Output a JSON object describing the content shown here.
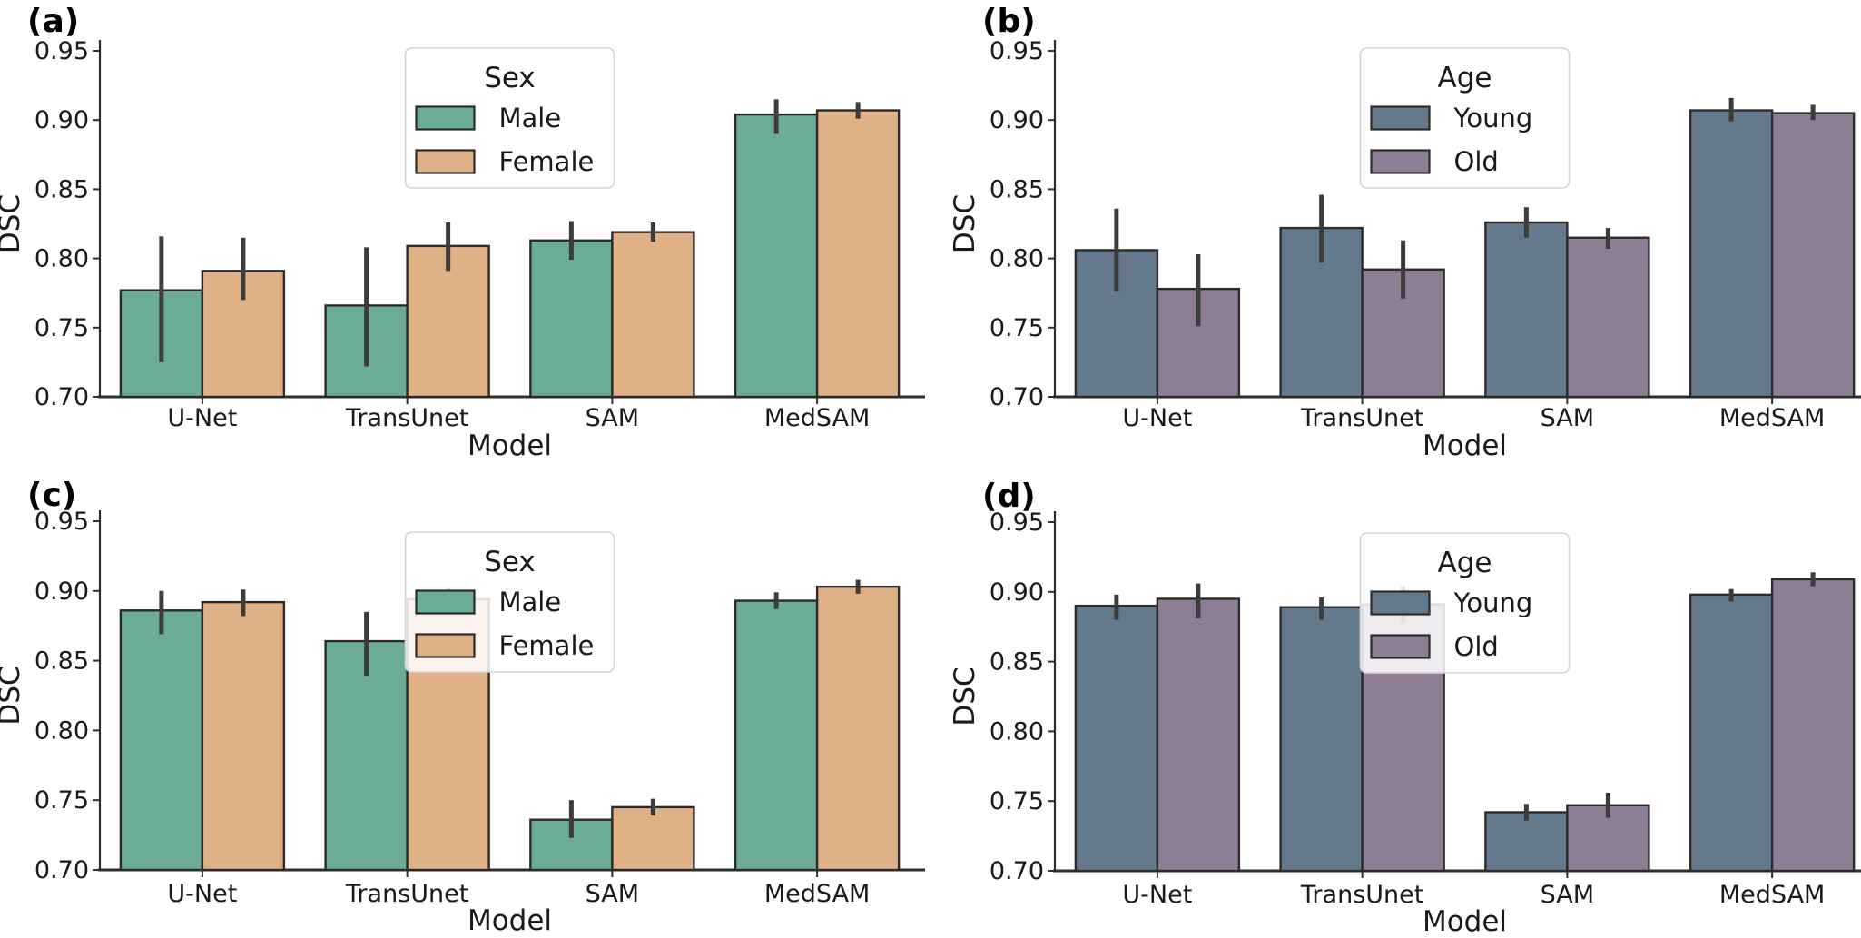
{
  "figure": {
    "background": "#FFFFFF",
    "xlabel": "Model",
    "ylabel": "DSC",
    "categories": [
      "U-Net",
      "TransUnet",
      "SAM",
      "MedSAM"
    ],
    "ytick_labels": [
      "0.70",
      "0.75",
      "0.80",
      "0.85",
      "0.90",
      "0.95"
    ],
    "ylim": [
      0.7,
      0.95
    ]
  },
  "colors": {
    "male": "#6BAC98",
    "female": "#E0B087",
    "young": "#64798C",
    "old": "#8D7E96",
    "bar_edge": "#2B2B2B",
    "error_bar": "#3C3C3C",
    "axis": "#2E2E2E",
    "text": "#1A1A1A",
    "legend_border": "#D4D4D4",
    "legend_bg": "rgba(255,255,255,0.85)"
  },
  "chart_data": [
    {
      "type": "bar",
      "panel_label": "(a)",
      "legend_title": "Sex",
      "legend_position": "upper center",
      "xlabel": "Model",
      "ylabel": "DSC",
      "ylim": [
        0.7,
        0.95
      ],
      "yticks": [
        0.7,
        0.75,
        0.8,
        0.85,
        0.9,
        0.95
      ],
      "grid": false,
      "categories": [
        "U-Net",
        "TransUnet",
        "SAM",
        "MedSAM"
      ],
      "series": [
        {
          "name": "Male",
          "color_key": "male",
          "values": [
            0.777,
            0.766,
            0.813,
            0.904
          ],
          "err_lo": [
            0.725,
            0.722,
            0.799,
            0.89
          ],
          "err_hi": [
            0.816,
            0.808,
            0.827,
            0.915
          ]
        },
        {
          "name": "Female",
          "color_key": "female",
          "values": [
            0.791,
            0.809,
            0.819,
            0.907
          ],
          "err_lo": [
            0.77,
            0.791,
            0.812,
            0.901
          ],
          "err_hi": [
            0.815,
            0.826,
            0.826,
            0.913
          ]
        }
      ]
    },
    {
      "type": "bar",
      "panel_label": "(b)",
      "legend_title": "Age",
      "legend_position": "upper center",
      "xlabel": "Model",
      "ylabel": "DSC",
      "ylim": [
        0.7,
        0.95
      ],
      "yticks": [
        0.7,
        0.75,
        0.8,
        0.85,
        0.9,
        0.95
      ],
      "grid": false,
      "categories": [
        "U-Net",
        "TransUnet",
        "SAM",
        "MedSAM"
      ],
      "series": [
        {
          "name": "Young",
          "color_key": "young",
          "values": [
            0.806,
            0.822,
            0.826,
            0.907
          ],
          "err_lo": [
            0.776,
            0.797,
            0.815,
            0.899
          ],
          "err_hi": [
            0.836,
            0.846,
            0.837,
            0.916
          ]
        },
        {
          "name": "Old",
          "color_key": "old",
          "values": [
            0.778,
            0.792,
            0.815,
            0.905
          ],
          "err_lo": [
            0.751,
            0.771,
            0.807,
            0.9
          ],
          "err_hi": [
            0.803,
            0.813,
            0.822,
            0.911
          ]
        }
      ]
    },
    {
      "type": "bar",
      "panel_label": "(c)",
      "legend_title": "Sex",
      "legend_position": "upper center",
      "xlabel": "Model",
      "ylabel": "DSC",
      "ylim": [
        0.7,
        0.95
      ],
      "yticks": [
        0.7,
        0.75,
        0.8,
        0.85,
        0.9,
        0.95
      ],
      "grid": false,
      "categories": [
        "U-Net",
        "TransUnet",
        "SAM",
        "MedSAM"
      ],
      "series": [
        {
          "name": "Male",
          "color_key": "male",
          "values": [
            0.886,
            0.864,
            0.736,
            0.893
          ],
          "err_lo": [
            0.869,
            0.839,
            0.723,
            0.887
          ],
          "err_hi": [
            0.9,
            0.885,
            0.75,
            0.899
          ]
        },
        {
          "name": "Female",
          "color_key": "female",
          "values": [
            0.892,
            0.894,
            0.745,
            0.903
          ],
          "err_lo": [
            0.882,
            0.885,
            0.739,
            0.898
          ],
          "err_hi": [
            0.901,
            0.902,
            0.751,
            0.908
          ]
        }
      ]
    },
    {
      "type": "bar",
      "panel_label": "(d)",
      "legend_title": "Age",
      "legend_position": "upper center",
      "xlabel": "Model",
      "ylabel": "DSC",
      "ylim": [
        0.7,
        0.95
      ],
      "yticks": [
        0.7,
        0.75,
        0.8,
        0.85,
        0.9,
        0.95
      ],
      "grid": false,
      "categories": [
        "U-Net",
        "TransUnet",
        "SAM",
        "MedSAM"
      ],
      "series": [
        {
          "name": "Young",
          "color_key": "young",
          "values": [
            0.89,
            0.889,
            0.742,
            0.898
          ],
          "err_lo": [
            0.88,
            0.88,
            0.736,
            0.893
          ],
          "err_hi": [
            0.898,
            0.896,
            0.748,
            0.902
          ]
        },
        {
          "name": "Old",
          "color_key": "old",
          "values": [
            0.895,
            0.891,
            0.747,
            0.909
          ],
          "err_lo": [
            0.881,
            0.878,
            0.738,
            0.904
          ],
          "err_hi": [
            0.906,
            0.904,
            0.756,
            0.914
          ]
        }
      ]
    }
  ]
}
